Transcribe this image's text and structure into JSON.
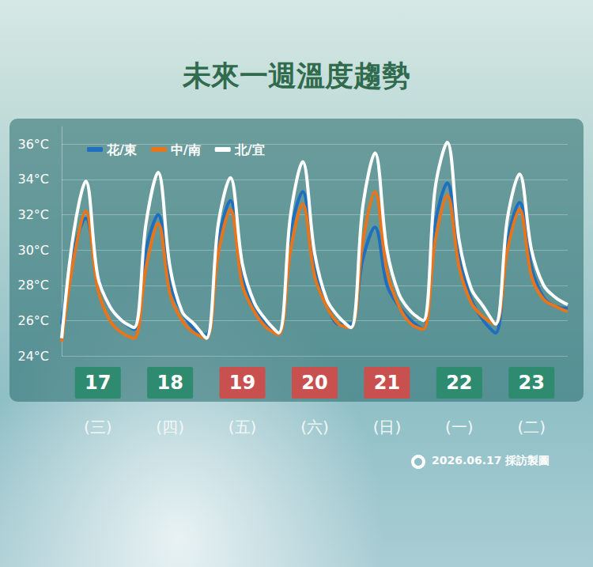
{
  "chart_data": {
    "type": "line",
    "title": "未來一週溫度趨勢",
    "footer": "2026.06.17 採訪製圖",
    "categories": [
      null,
      null,
      null,
      "17",
      null,
      null,
      null,
      null,
      null,
      "18",
      null,
      null,
      null,
      null,
      null,
      "19",
      null,
      null,
      null,
      null,
      null,
      "20",
      null,
      null,
      null,
      null,
      null,
      "21",
      null,
      null,
      null,
      null,
      null,
      "22",
      null,
      null,
      null,
      null,
      null,
      "23",
      null,
      null,
      null
    ],
    "weekdays": [
      null,
      null,
      null,
      "(三)",
      null,
      null,
      null,
      null,
      null,
      "(四)",
      null,
      null,
      null,
      null,
      null,
      "(五)",
      null,
      null,
      null,
      null,
      null,
      "(六)",
      null,
      null,
      null,
      null,
      null,
      "(日)",
      null,
      null,
      null,
      null,
      null,
      "(一)",
      null,
      null,
      null,
      null,
      null,
      "(二)",
      null,
      null,
      null
    ],
    "label_colors": [
      null,
      null,
      null,
      "#2e8b6f",
      null,
      null,
      null,
      null,
      null,
      "#2e8b6f",
      null,
      null,
      null,
      null,
      null,
      "#c8504f",
      null,
      null,
      null,
      null,
      null,
      "#c8504f",
      null,
      null,
      null,
      null,
      null,
      "#c8504f",
      null,
      null,
      null,
      null,
      null,
      "#2e8b6f",
      null,
      null,
      null,
      null,
      null,
      "#2e8b6f",
      null,
      null,
      null
    ],
    "series": [
      {
        "name": "花/東",
        "color": "#1f6fc0",
        "line_style": "solid",
        "values": [
          25.8,
          30.0,
          31.8,
          28.5,
          26.8,
          26.0,
          25.5,
          30.0,
          32.0,
          28.0,
          26.5,
          25.5,
          25.2,
          30.5,
          32.8,
          28.5,
          26.8,
          25.8,
          25.3,
          31.0,
          33.3,
          29.0,
          27.0,
          25.8,
          25.8,
          29.5,
          31.3,
          28.0,
          26.8,
          26.0,
          25.5,
          31.5,
          33.8,
          29.5,
          27.2,
          26.0,
          25.3,
          30.5,
          32.7,
          29.0,
          27.3,
          26.8,
          26.7
        ]
      },
      {
        "name": "中/南",
        "color": "#e8751a",
        "line_style": "solid",
        "values": [
          24.8,
          29.5,
          32.2,
          27.8,
          26.0,
          25.3,
          25.0,
          29.0,
          31.5,
          27.5,
          26.0,
          25.3,
          25.0,
          29.8,
          32.3,
          28.0,
          26.5,
          25.6,
          25.2,
          30.0,
          32.6,
          28.5,
          26.8,
          25.8,
          25.6,
          30.5,
          33.3,
          28.8,
          26.8,
          25.8,
          25.5,
          30.5,
          33.1,
          29.0,
          27.0,
          26.2,
          25.8,
          30.0,
          32.3,
          28.5,
          27.2,
          26.8,
          26.5
        ]
      },
      {
        "name": "北/宜",
        "color": "#ffffff",
        "line_style": "solid",
        "values": [
          25.0,
          31.0,
          33.9,
          28.5,
          26.8,
          26.0,
          25.6,
          31.5,
          34.4,
          29.0,
          26.5,
          25.8,
          25.0,
          31.5,
          34.1,
          29.2,
          27.0,
          26.0,
          25.3,
          32.0,
          35.0,
          29.8,
          27.2,
          26.2,
          25.6,
          32.5,
          35.5,
          30.0,
          27.5,
          26.5,
          26.0,
          33.5,
          36.1,
          30.5,
          27.8,
          26.8,
          25.8,
          31.8,
          34.3,
          30.0,
          28.0,
          27.3,
          26.9
        ]
      }
    ],
    "ylim": [
      24,
      37
    ],
    "yticks": [
      {
        "value": 24,
        "label": "24°C"
      },
      {
        "value": 26,
        "label": "26°C"
      },
      {
        "value": 28,
        "label": "28°C"
      },
      {
        "value": 30,
        "label": "30°C"
      },
      {
        "value": 32,
        "label": "32°C"
      },
      {
        "value": 34,
        "label": "34°C"
      },
      {
        "value": 36,
        "label": "36°C"
      }
    ],
    "grid": true,
    "legend": "top-left"
  }
}
